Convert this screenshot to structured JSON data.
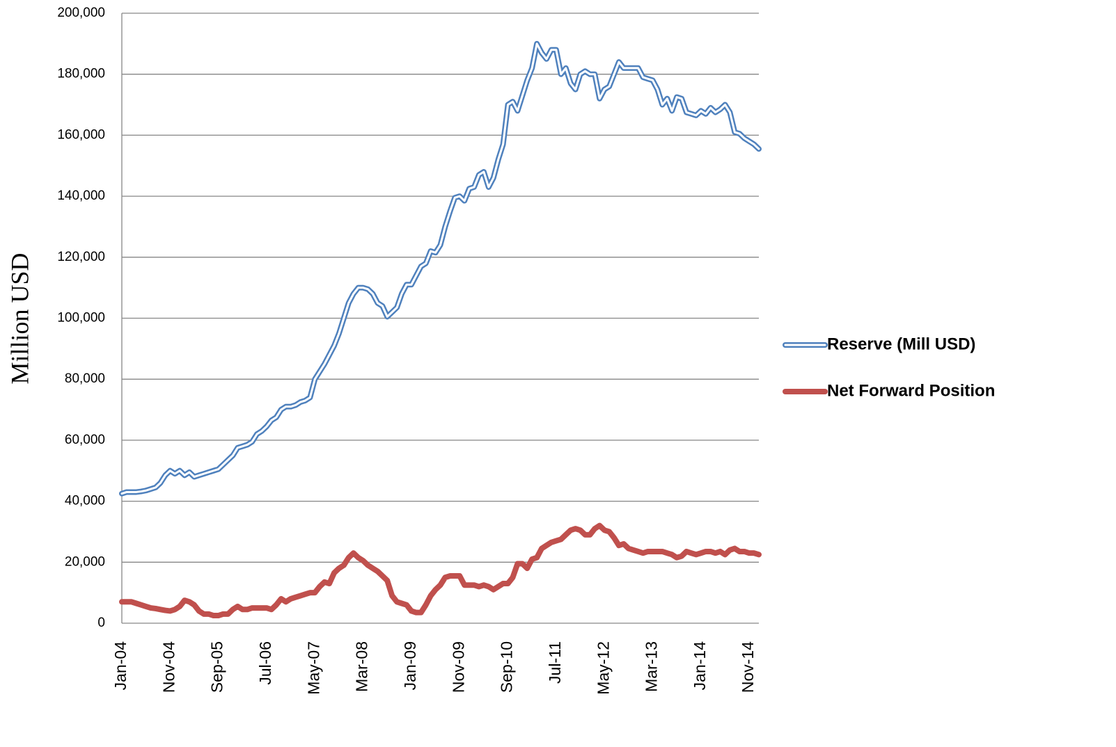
{
  "chart_data": {
    "type": "line",
    "y_label": "Million USD",
    "categories": [
      "Jan-04",
      null,
      null,
      null,
      null,
      null,
      null,
      null,
      null,
      null,
      "Nov-04",
      null,
      null,
      null,
      null,
      null,
      null,
      null,
      null,
      null,
      "Sep-05",
      null,
      null,
      null,
      null,
      null,
      null,
      null,
      null,
      null,
      "Jul-06",
      null,
      null,
      null,
      null,
      null,
      null,
      null,
      null,
      null,
      "May-07",
      null,
      null,
      null,
      null,
      null,
      null,
      null,
      null,
      null,
      "Mar-08",
      null,
      null,
      null,
      null,
      null,
      null,
      null,
      null,
      null,
      "Jan-09",
      null,
      null,
      null,
      null,
      null,
      null,
      null,
      null,
      null,
      "Nov-09",
      null,
      null,
      null,
      null,
      null,
      null,
      null,
      null,
      null,
      "Sep-10",
      null,
      null,
      null,
      null,
      null,
      null,
      null,
      null,
      null,
      "Jul-11",
      null,
      null,
      null,
      null,
      null,
      null,
      null,
      null,
      null,
      "May-12",
      null,
      null,
      null,
      null,
      null,
      null,
      null,
      null,
      null,
      "Mar-13",
      null,
      null,
      null,
      null,
      null,
      null,
      null,
      null,
      null,
      "Jan-14",
      null,
      null,
      null,
      null,
      null,
      null,
      null,
      null,
      null,
      "Nov-14",
      null,
      null
    ],
    "series": [
      {
        "name": "Reserve (Mill USD)",
        "color": "#4f81bd",
        "line_style": "double",
        "values": [
          42500,
          43000,
          43000,
          43000,
          43200,
          43500,
          44000,
          44500,
          46000,
          48500,
          50000,
          49000,
          50000,
          48500,
          49500,
          48000,
          48500,
          49000,
          49500,
          50000,
          50500,
          52000,
          53500,
          55000,
          57500,
          58000,
          58500,
          59500,
          62000,
          63000,
          64500,
          66500,
          67500,
          70000,
          71000,
          71000,
          71500,
          72500,
          73000,
          74000,
          80000,
          82500,
          85000,
          88000,
          91000,
          95000,
          100000,
          105000,
          108000,
          110000,
          110000,
          109500,
          108000,
          105000,
          104000,
          100500,
          102000,
          103500,
          108000,
          111000,
          111000,
          114000,
          117000,
          118000,
          122000,
          121500,
          124000,
          130000,
          135000,
          139500,
          140000,
          138500,
          142500,
          143000,
          147000,
          148000,
          143000,
          146000,
          152000,
          157000,
          170000,
          171000,
          168000,
          173000,
          178000,
          182000,
          190000,
          187000,
          185000,
          188000,
          188000,
          180000,
          182000,
          177000,
          175000,
          180000,
          181000,
          180000,
          180000,
          172000,
          175000,
          176000,
          180000,
          184000,
          182000,
          182000,
          182000,
          182000,
          179000,
          178500,
          178000,
          175000,
          170000,
          172000,
          168000,
          172500,
          172000,
          167500,
          167000,
          166500,
          168000,
          167000,
          169000,
          167500,
          168500,
          170000,
          167500,
          161000,
          160500,
          159000,
          158000,
          157000,
          155500
        ]
      },
      {
        "name": "Net Forward Position",
        "color": "#c0504d",
        "line_style": "solid",
        "values": [
          7000,
          7000,
          7000,
          6500,
          6000,
          5500,
          5000,
          4800,
          4500,
          4200,
          4000,
          4500,
          5500,
          7500,
          7000,
          6000,
          4000,
          3000,
          3000,
          2500,
          2500,
          3000,
          3000,
          4500,
          5500,
          4500,
          4500,
          5000,
          5000,
          5000,
          5000,
          4500,
          6000,
          8000,
          7000,
          8000,
          8500,
          9000,
          9500,
          10000,
          10000,
          12000,
          13500,
          13000,
          16500,
          18000,
          19000,
          21500,
          23000,
          21500,
          20500,
          19000,
          18000,
          17000,
          15500,
          14000,
          9000,
          7000,
          6500,
          6000,
          4000,
          3500,
          3500,
          6000,
          9000,
          11000,
          12500,
          15000,
          15500,
          15500,
          15500,
          12500,
          12500,
          12500,
          12000,
          12500,
          12000,
          11000,
          12000,
          13000,
          13000,
          15000,
          19500,
          19500,
          18000,
          21000,
          21500,
          24500,
          25500,
          26500,
          27000,
          27500,
          29000,
          30500,
          31000,
          30500,
          29000,
          29000,
          31000,
          32000,
          30500,
          30000,
          28000,
          25500,
          26000,
          24500,
          24000,
          23500,
          23000,
          23500,
          23500,
          23500,
          23500,
          23000,
          22500,
          21500,
          22000,
          23500,
          23000,
          22500,
          23000,
          23500,
          23500,
          23000,
          23500,
          22500,
          24000,
          24500,
          23500,
          23500,
          23000,
          23000,
          22500
        ]
      }
    ],
    "ylim": [
      0,
      200000
    ],
    "yticks": [
      0,
      {
        "value": 20000,
        "label": "20,000"
      },
      {
        "value": 40000,
        "label": "40,000"
      },
      {
        "value": 60000,
        "label": "60,000"
      },
      {
        "value": 80000,
        "label": "80,000"
      },
      {
        "value": 100000,
        "label": "100,000"
      },
      {
        "value": 120000,
        "label": "120,000"
      },
      {
        "value": 140000,
        "label": "140,000"
      },
      {
        "value": 160000,
        "label": "160,000"
      },
      {
        "value": 180000,
        "label": "180,000"
      },
      {
        "value": 200000,
        "label": "200,000"
      }
    ],
    "grid": true,
    "legend": "right"
  }
}
